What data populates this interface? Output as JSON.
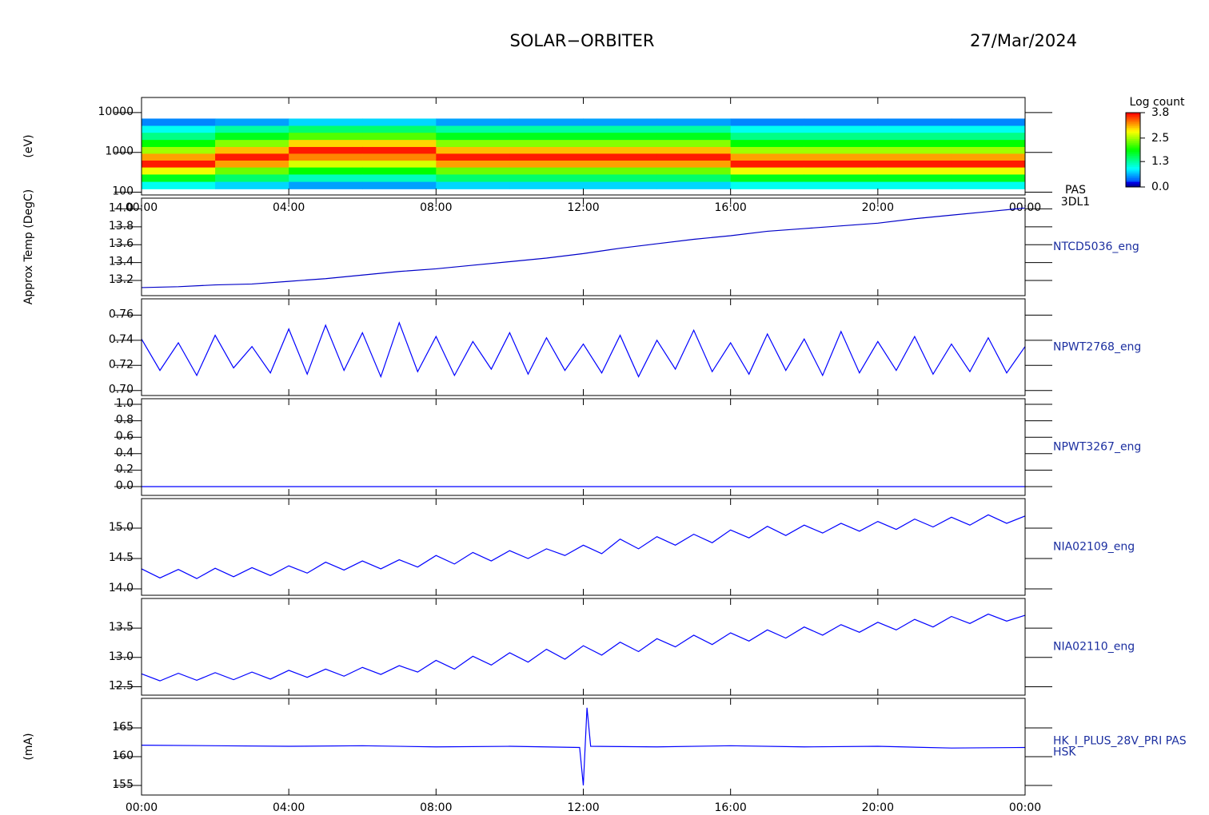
{
  "title": "SOLAR−ORBITER",
  "date": "27/Mar/2024",
  "chart_data": [
    {
      "type": "heatmap",
      "ylabel": "(eV)",
      "side_label": [
        "PAS",
        "3DL1"
      ],
      "log_y": true,
      "x": [
        1,
        3,
        5,
        7,
        9,
        11,
        13,
        15,
        17,
        19,
        21,
        23
      ],
      "y": [
        150,
        230,
        350,
        520,
        780,
        1150,
        1700,
        2600,
        3900,
        5800
      ],
      "z": [
        [
          1.0,
          1.8,
          2.8,
          3.7,
          3.2,
          2.5,
          1.9,
          1.4,
          1.0,
          0.5
        ],
        [
          0.8,
          1.5,
          2.3,
          3.2,
          3.7,
          3.1,
          2.4,
          1.8,
          1.3,
          0.6
        ],
        [
          0.6,
          1.2,
          1.9,
          2.7,
          3.3,
          3.7,
          3.0,
          2.2,
          1.5,
          0.8
        ],
        [
          0.6,
          1.2,
          1.9,
          2.7,
          3.3,
          3.7,
          3.0,
          2.2,
          1.5,
          0.8
        ],
        [
          0.8,
          1.5,
          2.3,
          3.2,
          3.7,
          3.1,
          2.4,
          1.8,
          1.3,
          0.6
        ],
        [
          0.8,
          1.5,
          2.3,
          3.2,
          3.7,
          3.1,
          2.4,
          1.8,
          1.3,
          0.6
        ],
        [
          0.8,
          1.5,
          2.3,
          3.2,
          3.7,
          3.1,
          2.4,
          1.8,
          1.3,
          0.6
        ],
        [
          0.8,
          1.5,
          2.3,
          3.2,
          3.7,
          3.1,
          2.4,
          1.8,
          1.3,
          0.6
        ],
        [
          1.0,
          1.8,
          2.8,
          3.7,
          3.2,
          2.5,
          1.9,
          1.4,
          1.0,
          0.5
        ],
        [
          1.0,
          1.8,
          2.8,
          3.7,
          3.2,
          2.5,
          1.9,
          1.4,
          1.0,
          0.5
        ],
        [
          1.0,
          1.8,
          2.8,
          3.7,
          3.2,
          2.5,
          1.9,
          1.4,
          1.0,
          0.5
        ],
        [
          1.0,
          1.8,
          2.8,
          3.7,
          3.2,
          2.5,
          1.9,
          1.4,
          1.0,
          0.5
        ]
      ],
      "ylim": [
        85,
        24000
      ],
      "yticks": [
        100,
        1000,
        10000
      ],
      "xlim": [
        0,
        24
      ],
      "xticks": [
        {
          "value": 0,
          "label": "00:00"
        },
        {
          "value": 4,
          "label": "04:00"
        },
        {
          "value": 8,
          "label": "08:00"
        },
        {
          "value": 12,
          "label": "12:00"
        },
        {
          "value": 16,
          "label": "16:00"
        },
        {
          "value": 20,
          "label": "20:00"
        },
        {
          "value": 24,
          "label": "00:00"
        }
      ],
      "colorbar_label": "Log count",
      "zlim": [
        0,
        3.8
      ],
      "zticks": [
        {
          "value": 0,
          "label": "0.0"
        },
        1.3,
        2.5,
        3.8
      ]
    },
    {
      "type": "line",
      "ylabel": "Approx Temp (DegC)",
      "side_label": [
        "NTCD5036_eng"
      ],
      "color": "#0000c8",
      "x": [
        0,
        1,
        2,
        3,
        4,
        5,
        6,
        7,
        8,
        9,
        10,
        11,
        12,
        13,
        14,
        15,
        16,
        17,
        18,
        19,
        20,
        21,
        22,
        23,
        24
      ],
      "values": [
        13.12,
        13.13,
        13.15,
        13.16,
        13.19,
        13.22,
        13.26,
        13.3,
        13.33,
        13.37,
        13.41,
        13.45,
        13.5,
        13.56,
        13.61,
        13.66,
        13.7,
        13.75,
        13.78,
        13.81,
        13.84,
        13.89,
        13.93,
        13.97,
        14.01
      ],
      "ylim": [
        13.03,
        14.12
      ],
      "yticks": [
        13.2,
        13.4,
        13.6,
        13.8,
        {
          "value": 14,
          "label": "14.0"
        }
      ],
      "xlim": [
        0,
        24
      ],
      "xticks": [
        0,
        4,
        8,
        12,
        16,
        20,
        24
      ]
    },
    {
      "type": "line",
      "side_label": [
        "NPWT2768_eng"
      ],
      "color": "#0000ff",
      "x": [
        0,
        0.5,
        1,
        1.5,
        2,
        2.5,
        3,
        3.5,
        4,
        4.5,
        5,
        5.5,
        6,
        6.5,
        7,
        7.5,
        8,
        8.5,
        9,
        9.5,
        10,
        10.5,
        11,
        11.5,
        12,
        12.5,
        13,
        13.5,
        14,
        14.5,
        15,
        15.5,
        16,
        16.5,
        17,
        17.5,
        18,
        18.5,
        19,
        19.5,
        20,
        20.5,
        21,
        21.5,
        22,
        22.5,
        23,
        23.5,
        24
      ],
      "values": [
        0.741,
        0.716,
        0.738,
        0.712,
        0.744,
        0.718,
        0.735,
        0.714,
        0.749,
        0.713,
        0.752,
        0.716,
        0.746,
        0.711,
        0.754,
        0.715,
        0.743,
        0.712,
        0.739,
        0.717,
        0.746,
        0.713,
        0.742,
        0.716,
        0.737,
        0.714,
        0.744,
        0.711,
        0.74,
        0.717,
        0.748,
        0.715,
        0.738,
        0.713,
        0.745,
        0.716,
        0.741,
        0.712,
        0.747,
        0.714,
        0.739,
        0.716,
        0.743,
        0.713,
        0.737,
        0.715,
        0.742,
        0.714,
        0.735
      ],
      "ylim": [
        0.696,
        0.773
      ],
      "yticks": [
        {
          "value": 0.7,
          "label": "0.70"
        },
        0.72,
        0.74,
        0.76
      ],
      "xlim": [
        0,
        24
      ],
      "xticks": [
        0,
        4,
        8,
        12,
        16,
        20,
        24
      ]
    },
    {
      "type": "line",
      "side_label": [
        "NPWT3267_eng"
      ],
      "color": "#0000ff",
      "x": [
        0,
        24
      ],
      "values": [
        0,
        0
      ],
      "ylim": [
        -0.107,
        1.068
      ],
      "yticks": [
        {
          "value": 0,
          "label": "0.0"
        },
        0.2,
        0.4,
        0.6,
        0.8,
        {
          "value": 1,
          "label": "1.0"
        }
      ],
      "xlim": [
        0,
        24
      ],
      "xticks": [
        0,
        4,
        8,
        12,
        16,
        20,
        24
      ]
    },
    {
      "type": "line",
      "side_label": [
        "NIA02109_eng"
      ],
      "color": "#0000ff",
      "x": [
        0,
        0.5,
        1,
        1.5,
        2,
        2.5,
        3,
        3.5,
        4,
        4.5,
        5,
        5.5,
        6,
        6.5,
        7,
        7.5,
        8,
        8.5,
        9,
        9.5,
        10,
        10.5,
        11,
        11.5,
        12,
        12.5,
        13,
        13.5,
        14,
        14.5,
        15,
        15.5,
        16,
        16.5,
        17,
        17.5,
        18,
        18.5,
        19,
        19.5,
        20,
        20.5,
        21,
        21.5,
        22,
        22.5,
        23,
        23.5,
        24
      ],
      "values": [
        14.33,
        14.18,
        14.32,
        14.17,
        14.34,
        14.2,
        14.35,
        14.22,
        14.38,
        14.26,
        14.44,
        14.31,
        14.46,
        14.33,
        14.48,
        14.36,
        14.55,
        14.41,
        14.6,
        14.46,
        14.63,
        14.5,
        14.66,
        14.55,
        14.72,
        14.58,
        14.82,
        14.66,
        14.86,
        14.72,
        14.9,
        14.76,
        14.97,
        14.84,
        15.03,
        14.88,
        15.05,
        14.92,
        15.08,
        14.95,
        15.11,
        14.98,
        15.15,
        15.02,
        15.18,
        15.05,
        15.22,
        15.08,
        15.2
      ],
      "ylim": [
        13.895,
        15.487
      ],
      "yticks": [
        {
          "value": 14,
          "label": "14.0"
        },
        14.5,
        {
          "value": 15,
          "label": "15.0"
        }
      ],
      "xlim": [
        0,
        24
      ],
      "xticks": [
        0,
        4,
        8,
        12,
        16,
        20,
        24
      ]
    },
    {
      "type": "line",
      "side_label": [
        "NIA02110_eng"
      ],
      "color": "#0000ff",
      "x": [
        0,
        0.5,
        1,
        1.5,
        2,
        2.5,
        3,
        3.5,
        4,
        4.5,
        5,
        5.5,
        6,
        6.5,
        7,
        7.5,
        8,
        8.5,
        9,
        9.5,
        10,
        10.5,
        11,
        11.5,
        12,
        12.5,
        13,
        13.5,
        14,
        14.5,
        15,
        15.5,
        16,
        16.5,
        17,
        17.5,
        18,
        18.5,
        19,
        19.5,
        20,
        20.5,
        21,
        21.5,
        22,
        22.5,
        23,
        23.5,
        24
      ],
      "values": [
        12.72,
        12.6,
        12.73,
        12.61,
        12.74,
        12.62,
        12.75,
        12.63,
        12.78,
        12.66,
        12.8,
        12.68,
        12.83,
        12.71,
        12.86,
        12.75,
        12.95,
        12.8,
        13.02,
        12.87,
        13.08,
        12.92,
        13.14,
        12.97,
        13.2,
        13.04,
        13.26,
        13.1,
        13.32,
        13.18,
        13.38,
        13.22,
        13.42,
        13.28,
        13.47,
        13.33,
        13.52,
        13.38,
        13.56,
        13.43,
        13.6,
        13.47,
        13.65,
        13.52,
        13.7,
        13.58,
        13.74,
        13.62,
        13.72
      ],
      "ylim": [
        12.356,
        14.007
      ],
      "yticks": [
        12.5,
        {
          "value": 13,
          "label": "13.0"
        },
        13.5
      ],
      "xlim": [
        0,
        24
      ],
      "xticks": [
        0,
        4,
        8,
        12,
        16,
        20,
        24
      ]
    },
    {
      "type": "line",
      "ylabel": "(mA)",
      "side_label": [
        "HK_I_PLUS_28V_PRI PAS",
        "HSK"
      ],
      "color": "#0000ff",
      "x": [
        0,
        2,
        4,
        6,
        8,
        10,
        11.9,
        12.0,
        12.1,
        12.2,
        14,
        16,
        18,
        20,
        22,
        24
      ],
      "values": [
        162.0,
        161.9,
        161.8,
        161.9,
        161.7,
        161.8,
        161.6,
        155.0,
        168.5,
        161.8,
        161.7,
        161.9,
        161.7,
        161.8,
        161.5,
        161.6
      ],
      "ylim": [
        153.33,
        170.14
      ],
      "yticks": [
        155,
        160,
        165
      ],
      "xlim": [
        0,
        24
      ],
      "xticks": [
        {
          "value": 0,
          "label": "00:00"
        },
        {
          "value": 4,
          "label": "04:00"
        },
        {
          "value": 8,
          "label": "08:00"
        },
        {
          "value": 12,
          "label": "12:00"
        },
        {
          "value": 16,
          "label": "16:00"
        },
        {
          "value": 20,
          "label": "20:00"
        },
        {
          "value": 24,
          "label": "00:00"
        }
      ]
    }
  ]
}
